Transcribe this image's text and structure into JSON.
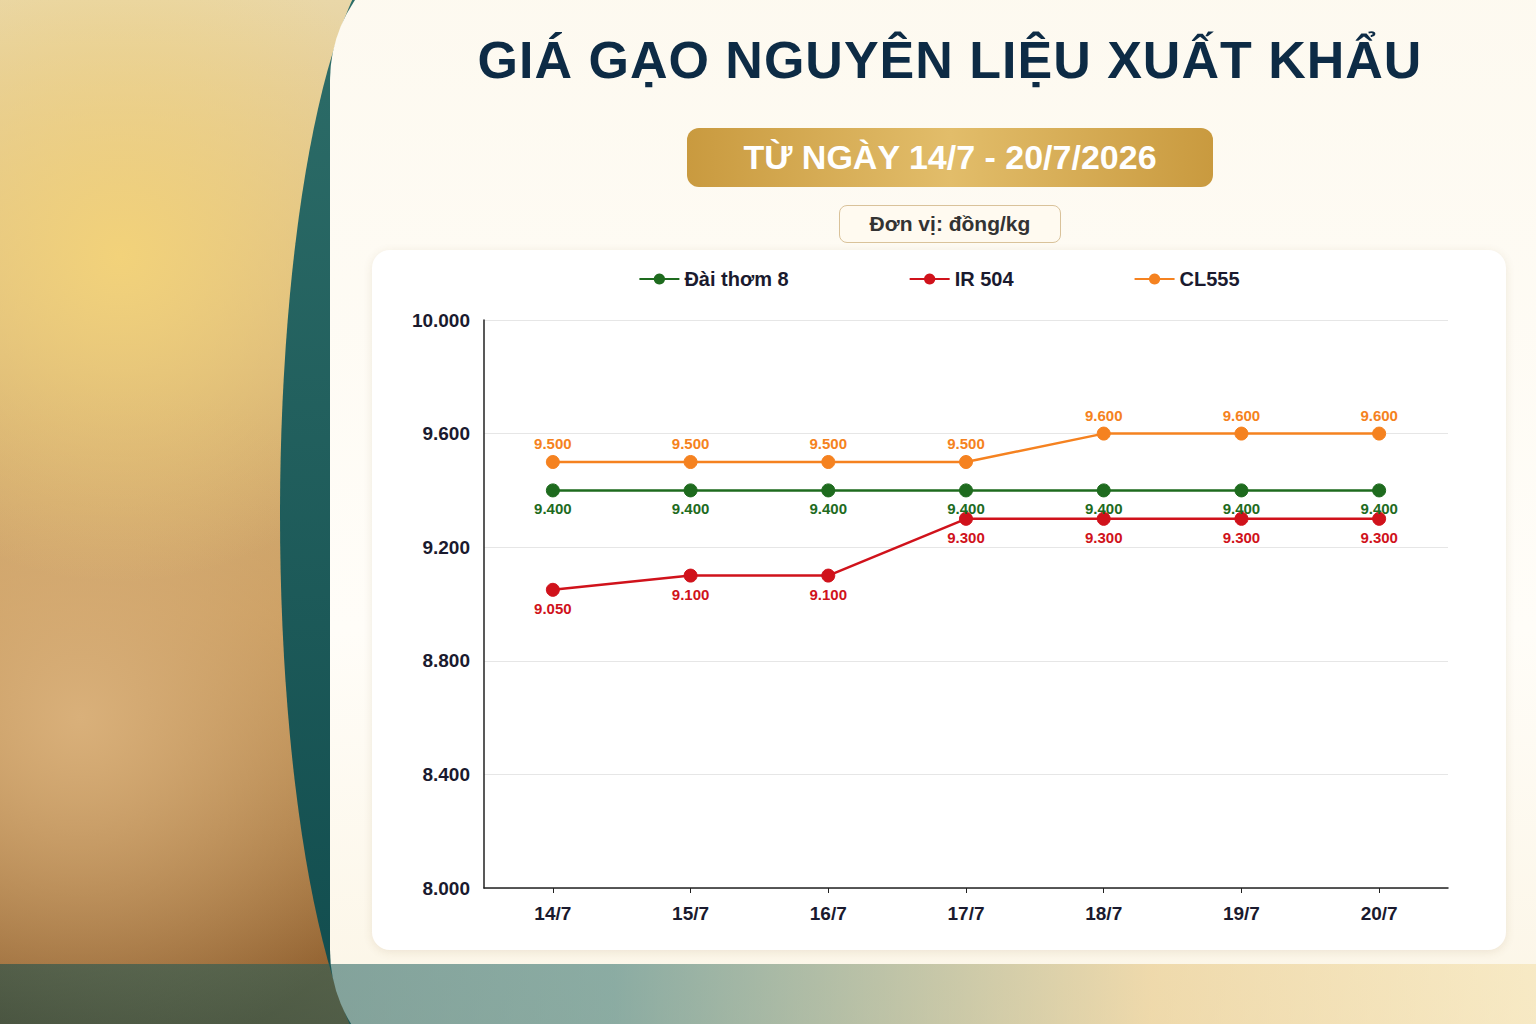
{
  "chart_data": {
    "type": "line",
    "title": "GIÁ GẠO NGUYÊN LIỆU XUẤT KHẨU",
    "subtitle": "TỪ NGÀY 14/7 - 20/7/2026",
    "y_label": "Đơn vị: đồng/kg",
    "categories": [
      "14/7",
      "15/7",
      "16/7",
      "17/7",
      "18/7",
      "19/7",
      "20/7"
    ],
    "series": [
      {
        "name": "Đài thơm 8",
        "color": "#1e6b1e",
        "marker": "circle",
        "values": [
          9400,
          9400,
          9400,
          9400,
          9400,
          9400,
          9400
        ],
        "value_labels": [
          "9.400",
          "9.400",
          "9.400",
          "9.400",
          "9.400",
          "9.400",
          "9.400"
        ]
      },
      {
        "name": "IR 504",
        "color": "#d0121b",
        "marker": "circle",
        "values": [
          9050,
          9100,
          9100,
          9300,
          9300,
          9300,
          9300
        ],
        "value_labels": [
          "9.050",
          "9.100",
          "9.100",
          "9.300",
          "9.300",
          "9.300",
          "9.300"
        ]
      },
      {
        "name": "CL555",
        "color": "#f58220",
        "marker": "circle",
        "values": [
          9500,
          9500,
          9500,
          9500,
          9600,
          9600,
          9600
        ],
        "value_labels": [
          "9.500",
          "9.500",
          "9.500",
          "9.500",
          "9.600",
          "9.600",
          "9.600"
        ]
      }
    ],
    "ylim": [
      8000,
      10000
    ],
    "yticks": [
      {
        "value": 8000,
        "label": "8.000"
      },
      {
        "value": 8400,
        "label": "8.400"
      },
      {
        "value": 8800,
        "label": "8.800"
      },
      {
        "value": 9200,
        "label": "9.200"
      },
      {
        "value": 9600,
        "label": "9.600"
      },
      {
        "value": 10000,
        "label": "10.000"
      }
    ],
    "grid": true,
    "legend": "top",
    "data_labels": true
  }
}
